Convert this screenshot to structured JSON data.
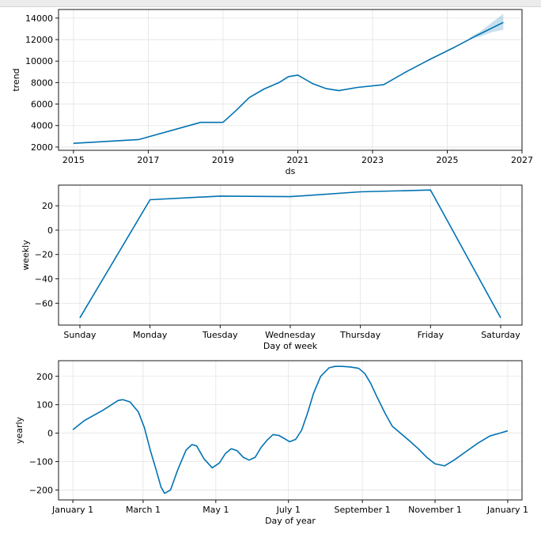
{
  "chart_data": [
    {
      "type": "line",
      "id": "trend",
      "title": "",
      "xlabel": "ds",
      "ylabel": "trend",
      "xlim": [
        2014.6,
        2027.0
      ],
      "ylim": [
        1700,
        14800
      ],
      "xticks": [
        2015,
        2017,
        2019,
        2021,
        2023,
        2025,
        2027
      ],
      "xtick_labels": [
        "2015",
        "2017",
        "2019",
        "2021",
        "2023",
        "2025",
        "2027"
      ],
      "yticks": [
        2000,
        4000,
        6000,
        8000,
        10000,
        12000,
        14000
      ],
      "ytick_labels": [
        "2000",
        "4000",
        "6000",
        "8000",
        "10000",
        "12000",
        "14000"
      ],
      "grid": true,
      "series": [
        {
          "color": "#0072B2",
          "x": [
            2015.0,
            2016.75,
            2018.4,
            2019.0,
            2019.35,
            2019.7,
            2020.1,
            2020.5,
            2020.75,
            2021.0,
            2021.4,
            2021.75,
            2022.1,
            2022.6,
            2023.3,
            2023.9,
            2024.5,
            2025.2,
            2025.8,
            2026.5
          ],
          "y": [
            2350,
            2700,
            4300,
            4300,
            5400,
            6600,
            7400,
            8000,
            8550,
            8700,
            7900,
            7450,
            7250,
            7550,
            7800,
            9000,
            10100,
            11300,
            12400,
            13600
          ]
        }
      ],
      "band": {
        "color": "#0072B2",
        "x": [
          2025.6,
          2025.9,
          2026.2,
          2026.5
        ],
        "upper": [
          12200,
          12800,
          13600,
          14400
        ],
        "lower": [
          12050,
          12300,
          12700,
          12900
        ]
      }
    },
    {
      "type": "line",
      "id": "weekly",
      "title": "",
      "xlabel": "Day of week",
      "ylabel": "weekly",
      "categories": [
        "Sunday",
        "Monday",
        "Tuesday",
        "Wednesday",
        "Thursday",
        "Friday",
        "Saturday"
      ],
      "ylim": [
        -78,
        37
      ],
      "yticks": [
        -60,
        -40,
        -20,
        0,
        20
      ],
      "ytick_labels": [
        "−60",
        "−40",
        "−20",
        "0",
        "20"
      ],
      "grid": true,
      "series": [
        {
          "color": "#0072B2",
          "values": [
            -72,
            25,
            28,
            27.5,
            31.5,
            33,
            -72
          ]
        }
      ]
    },
    {
      "type": "line",
      "id": "yearly",
      "title": "",
      "xlabel": "Day of year",
      "ylabel": "yearly",
      "xlim": [
        -12,
        377
      ],
      "ylim": [
        -235,
        255
      ],
      "xticks": [
        0,
        59,
        120,
        181,
        243,
        304,
        365
      ],
      "xtick_labels": [
        "January 1",
        "March 1",
        "May 1",
        "July 1",
        "September 1",
        "November 1",
        "January 1"
      ],
      "yticks": [
        -200,
        -100,
        0,
        100,
        200
      ],
      "ytick_labels": [
        "−200",
        "−100",
        "0",
        "100",
        "200"
      ],
      "grid": true,
      "series": [
        {
          "color": "#0072B2",
          "x": [
            0,
            10,
            25,
            38,
            42,
            48,
            55,
            60,
            65,
            70,
            74,
            77,
            82,
            88,
            95,
            100,
            104,
            110,
            117,
            123,
            128,
            133,
            138,
            143,
            148,
            153,
            158,
            163,
            168,
            173,
            178,
            182,
            187,
            192,
            197,
            202,
            208,
            215,
            220,
            226,
            233,
            240,
            245,
            250,
            255,
            262,
            268,
            275,
            282,
            290,
            297,
            304,
            312,
            320,
            330,
            340,
            350,
            365
          ],
          "y": [
            12,
            45,
            80,
            115,
            118,
            110,
            75,
            20,
            -60,
            -130,
            -190,
            -212,
            -200,
            -130,
            -60,
            -40,
            -45,
            -90,
            -122,
            -105,
            -72,
            -55,
            -62,
            -85,
            -95,
            -85,
            -50,
            -25,
            -5,
            -8,
            -20,
            -30,
            -22,
            10,
            70,
            140,
            200,
            230,
            235,
            235,
            233,
            228,
            210,
            175,
            130,
            70,
            25,
            0,
            -25,
            -55,
            -85,
            -108,
            -115,
            -95,
            -65,
            -35,
            -10,
            8
          ]
        }
      ]
    }
  ]
}
